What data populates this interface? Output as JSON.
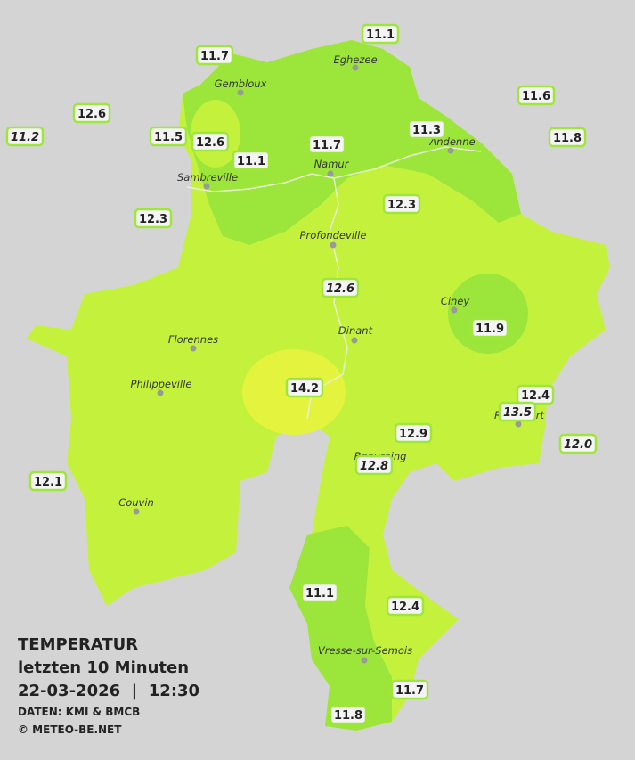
{
  "title": {
    "heading": "TEMPERATUR",
    "period": "letzten 10 Minuten",
    "datetime": "22-03-2026  |  12:30",
    "source": "DATEN: KMI & BMCB",
    "copyright": "© METEO-BE.NET"
  },
  "cities": [
    "Eghezee",
    "Gembloux",
    "Andenne",
    "Namur",
    "Sambreville",
    "Profondeville",
    "Ciney",
    "Dinant",
    "Florennes",
    "Philippeville",
    "Rochefort",
    "Beauraing",
    "Couvin",
    "Vresse-sur-Semois"
  ],
  "readings": [
    "11.1",
    "11.7",
    "11.6",
    "12.6",
    "11.2",
    "11.5",
    "12.6",
    "11.3",
    "11.8",
    "11.7",
    "11.1",
    "12.3",
    "12.3",
    "12.6",
    "11.9",
    "14.2",
    "12.4",
    "13.5",
    "12.0",
    "12.9",
    "12.8",
    "12.1",
    "11.1",
    "12.4",
    "11.7",
    "11.8"
  ]
}
